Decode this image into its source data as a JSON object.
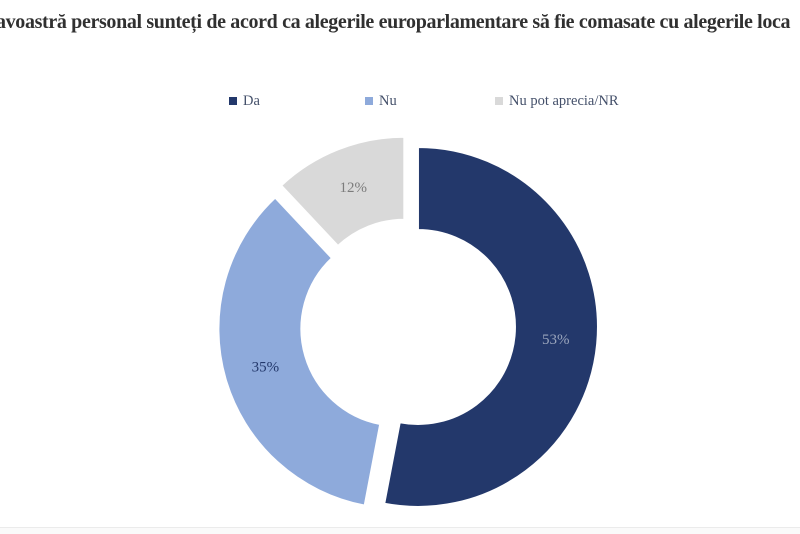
{
  "chart_data": {
    "type": "pie",
    "subtype": "exploded-doughnut",
    "title": "avoastră personal sunteți de acord ca alegerile europarlamentare să fie comasate cu alegerile loca",
    "categories": [
      "Da",
      "Nu",
      "Nu pot aprecia/NR"
    ],
    "values": [
      53,
      35,
      12
    ],
    "data_labels": [
      "53%",
      "35%",
      "12%"
    ],
    "unit": "percent",
    "slice_colors": [
      "#23386B",
      "#8EAADB",
      "#D9D9D9"
    ],
    "label_colors": [
      "#9AA5BC",
      "#23386B",
      "#7C7C7C"
    ],
    "legend_position": "top",
    "start_angle_deg": 0,
    "direction": "clockwise",
    "hole_ratio": 0.54,
    "explode": true
  },
  "legend": {
    "items": [
      {
        "label": "Da",
        "color": "#23386B"
      },
      {
        "label": "Nu",
        "color": "#8EAADB"
      },
      {
        "label": "Nu pot aprecia/NR",
        "color": "#D9D9D9"
      }
    ]
  },
  "theme": {
    "background": "#ffffff",
    "title_color": "#303030",
    "legend_text_color": "#44506A"
  }
}
